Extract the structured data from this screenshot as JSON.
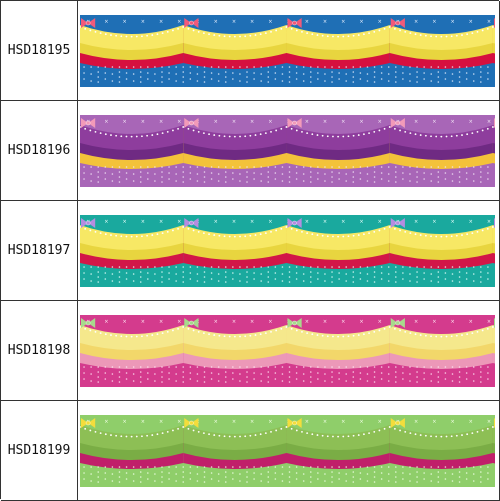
{
  "items": [
    {
      "code": "HSD18195",
      "colors": {
        "bg": "#1f6fb5",
        "top": "#f7e865",
        "mid": "#e8d53f",
        "bottom": "#d6103f",
        "bow": "#f05a7a",
        "dots": "#e8f0ff"
      }
    },
    {
      "code": "HSD18196",
      "colors": {
        "bg": "#a866b7",
        "top": "#8e3d9d",
        "mid": "#6f2a83",
        "bottom": "#f3c23a",
        "bow": "#f29ab9",
        "dots": "#f3e6f7"
      }
    },
    {
      "code": "HSD18197",
      "colors": {
        "bg": "#1aa99e",
        "top": "#f7e865",
        "mid": "#e8d53f",
        "bottom": "#d21648",
        "bow": "#b48de0",
        "dots": "#e8fffb"
      }
    },
    {
      "code": "HSD18198",
      "colors": {
        "bg": "#d43b8d",
        "top": "#f5e88c",
        "mid": "#f2d76a",
        "bottom": "#ec98b8",
        "bow": "#a8d98c",
        "dots": "#ffe6f3"
      }
    },
    {
      "code": "HSD18199",
      "colors": {
        "bg": "#8fce6a",
        "top": "#8dbf55",
        "mid": "#7aad45",
        "bottom": "#c01f6a",
        "bow": "#f3dd3c",
        "dots": "#f1ffe6"
      }
    }
  ]
}
